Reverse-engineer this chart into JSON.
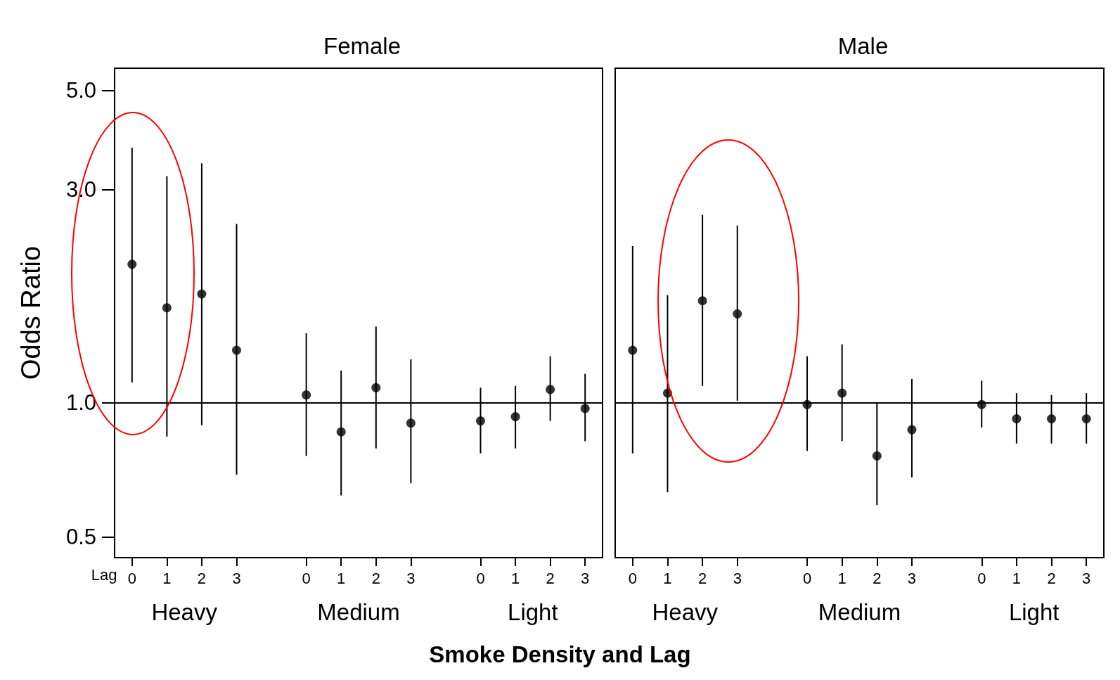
{
  "chart_data": [
    {
      "type": "scatter",
      "title": "Female",
      "xlabel": "Smoke Density and Lag",
      "ylabel": "Odds Ratio",
      "log": true,
      "marker": "circle",
      "grid": false,
      "categories": [
        "0",
        "1",
        "2",
        "3",
        null,
        "0",
        "1",
        "2",
        "3",
        null,
        "0",
        "1",
        "2",
        "3"
      ],
      "series": [
        {
          "color": "#000000",
          "values": [
            2.04,
            1.63,
            1.75,
            1.31,
            null,
            1.04,
            0.86,
            1.08,
            0.9,
            null,
            0.91,
            0.93,
            1.07,
            0.97
          ],
          "errors": [
            [
              1.11,
              3.72
            ],
            [
              0.84,
              3.21
            ],
            [
              0.89,
              3.43
            ],
            [
              0.69,
              2.51
            ],
            null,
            [
              0.76,
              1.43
            ],
            [
              0.62,
              1.18
            ],
            [
              0.79,
              1.48
            ],
            [
              0.66,
              1.25
            ],
            null,
            [
              0.77,
              1.08
            ],
            [
              0.79,
              1.09
            ],
            [
              0.91,
              1.27
            ],
            [
              0.82,
              1.16
            ]
          ]
        }
      ],
      "ylim": [
        0.45,
        5.6
      ],
      "yticks": [
        {
          "value": 0.5,
          "label": "0.5"
        },
        {
          "value": 1,
          "label": "1.0"
        },
        {
          "value": 3,
          "label": "3.0"
        },
        {
          "value": 5,
          "label": "5.0"
        }
      ],
      "ref_lines": [
        {
          "axis": "y",
          "value": 1,
          "color": "#000000"
        }
      ],
      "annotations": [
        "Lag",
        "Heavy",
        "Medium",
        "Light"
      ]
    },
    {
      "type": "scatter",
      "title": "Male",
      "log": true,
      "marker": "circle",
      "grid": false,
      "tick_labels": "x",
      "categories": [
        "0",
        "1",
        "2",
        "3",
        null,
        "0",
        "1",
        "2",
        "3",
        null,
        "0",
        "1",
        "2",
        "3"
      ],
      "series": [
        {
          "color": "#000000",
          "values": [
            1.31,
            1.05,
            1.69,
            1.58,
            null,
            0.99,
            1.05,
            0.76,
            0.87,
            null,
            0.99,
            0.92,
            0.92,
            0.92
          ],
          "errors": [
            [
              0.77,
              2.24
            ],
            [
              0.63,
              1.74
            ],
            [
              1.09,
              2.63
            ],
            [
              1.01,
              2.49
            ],
            null,
            [
              0.78,
              1.27
            ],
            [
              0.82,
              1.35
            ],
            [
              0.59,
              1.0
            ],
            [
              0.68,
              1.13
            ],
            null,
            [
              0.88,
              1.12
            ],
            [
              0.81,
              1.05
            ],
            [
              0.81,
              1.04
            ],
            [
              0.81,
              1.05
            ]
          ]
        }
      ],
      "ylim": [
        0.45,
        5.6
      ],
      "ref_lines": [
        {
          "axis": "y",
          "value": 1,
          "color": "#000000"
        }
      ],
      "annotations": [
        "Heavy",
        "Medium",
        "Light"
      ]
    }
  ]
}
